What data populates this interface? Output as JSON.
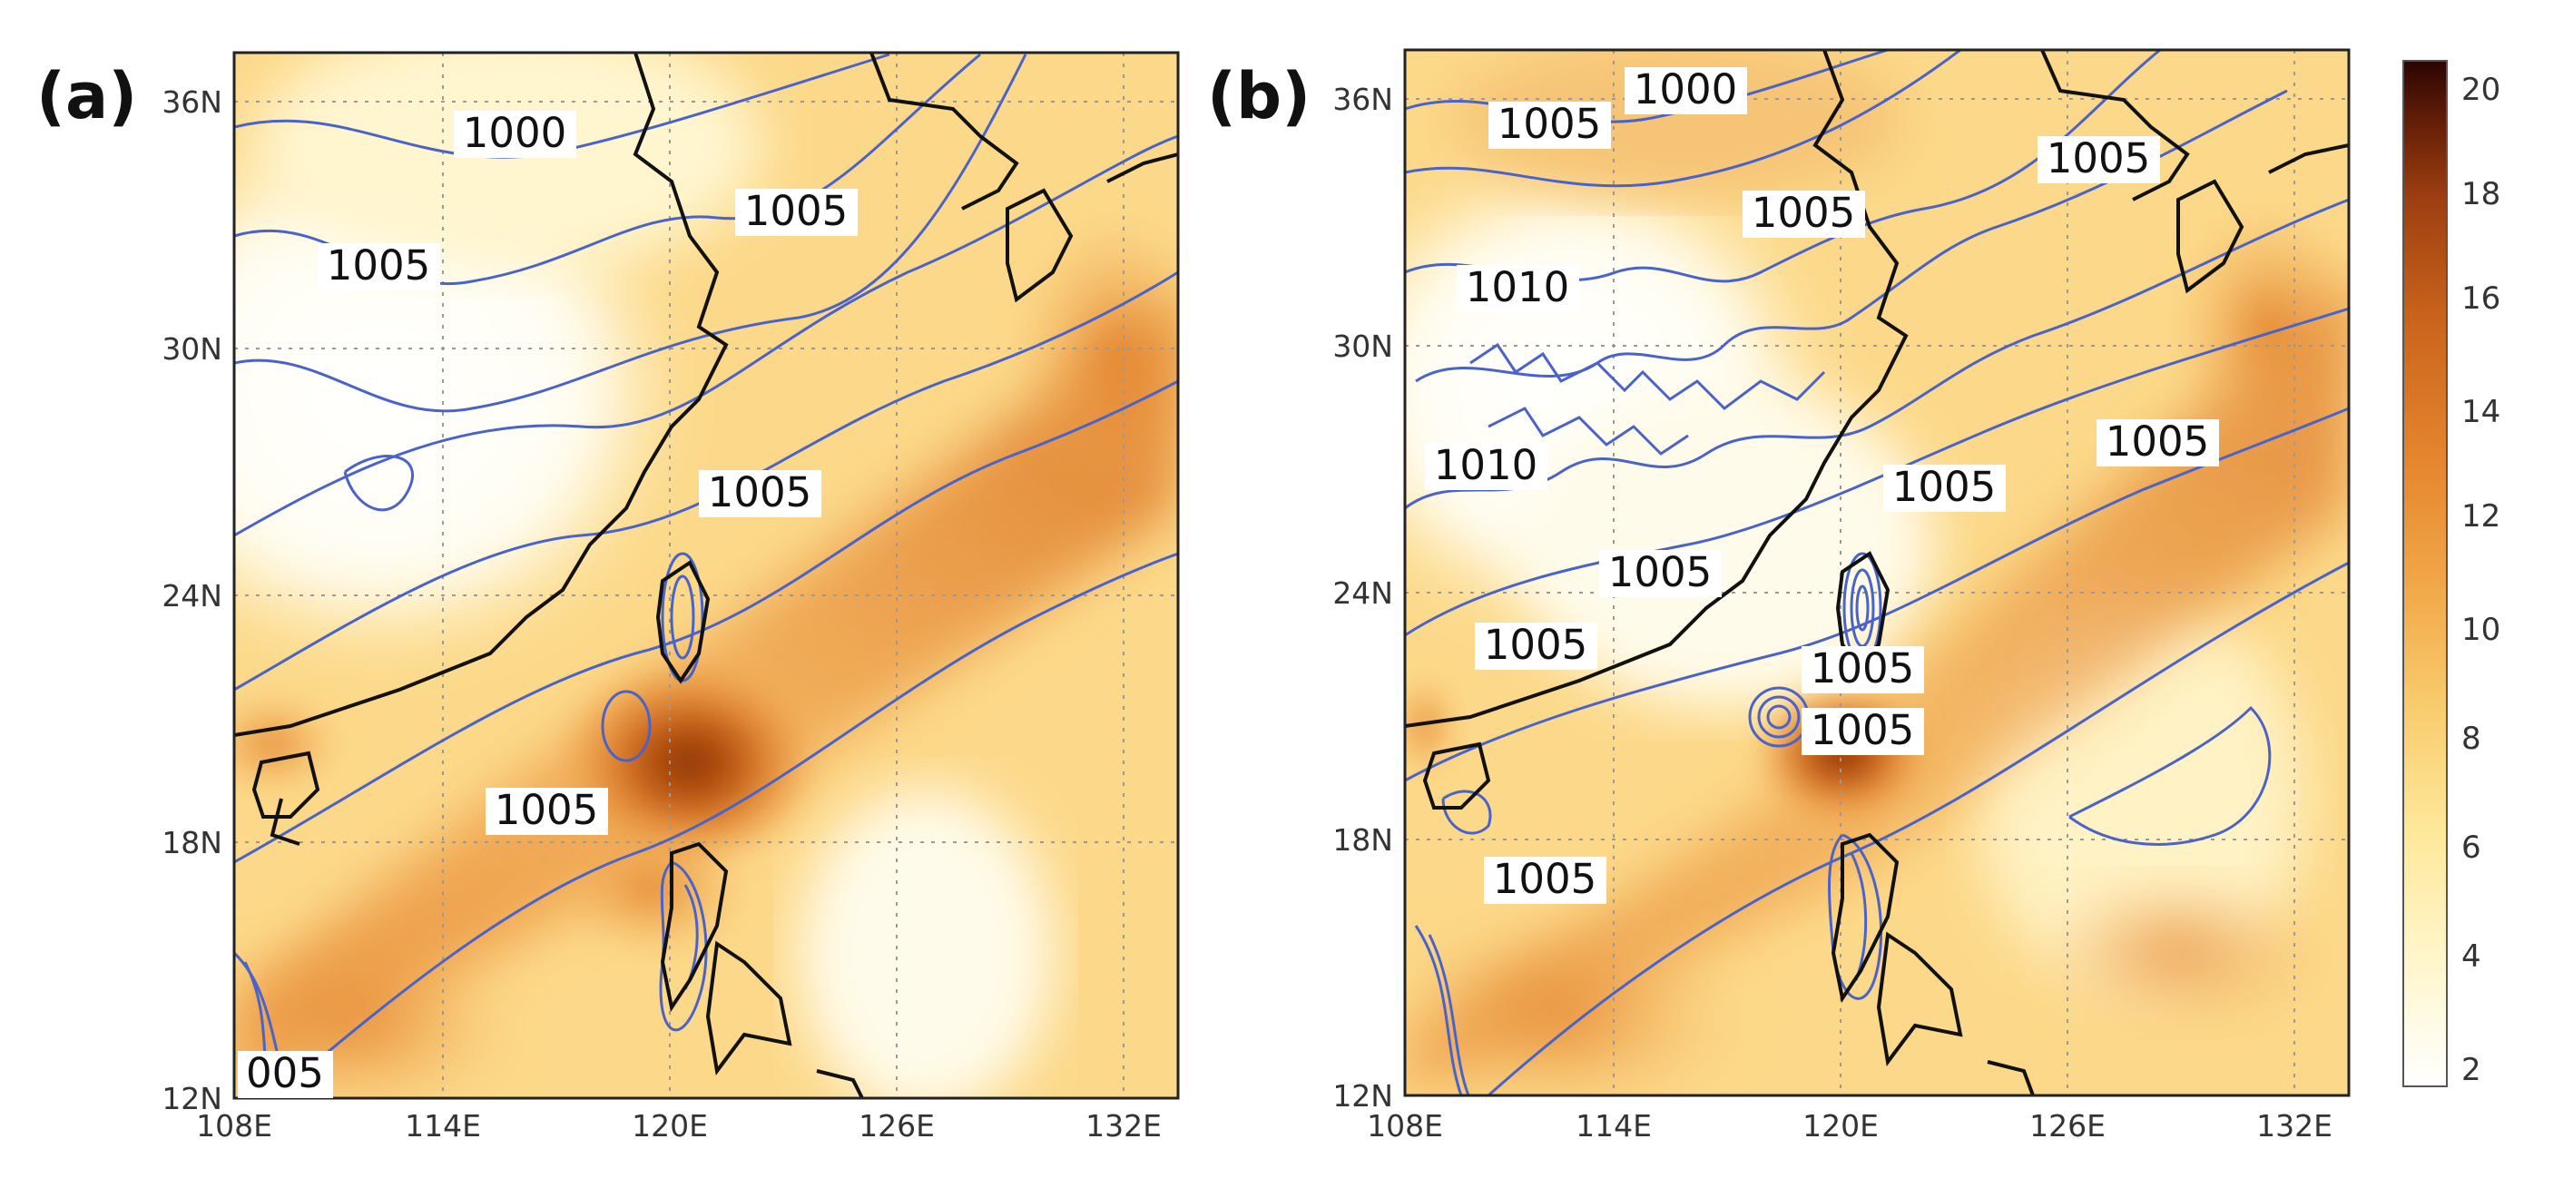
{
  "panels": [
    {
      "id": "a",
      "label": "(a)",
      "x_ticks": [
        "108E",
        "114E",
        "120E",
        "126E",
        "132E"
      ],
      "y_ticks": [
        "12N",
        "18N",
        "24N",
        "30N",
        "36N"
      ],
      "contour_labels": [
        "1000",
        "1005",
        "1005",
        "1005",
        "1005",
        "005"
      ]
    },
    {
      "id": "b",
      "label": "(b)",
      "x_ticks": [
        "108E",
        "114E",
        "120E",
        "126E",
        "132E"
      ],
      "y_ticks": [
        "12N",
        "18N",
        "24N",
        "30N",
        "36N"
      ],
      "contour_labels": [
        "1000",
        "1005",
        "1005",
        "1005",
        "1010",
        "1010",
        "1005",
        "1005",
        "1005",
        "1005",
        "1005",
        "1005",
        "1005"
      ]
    }
  ],
  "colorbar": {
    "ticks": [
      "20",
      "18",
      "16",
      "14",
      "12",
      "10",
      "8",
      "6",
      "4",
      "2"
    ],
    "min": 2,
    "max": 20,
    "colors": [
      "#ffffff",
      "#fff6cc",
      "#fde89a",
      "#f8c96a",
      "#f0a445",
      "#e4832c",
      "#c9631c",
      "#9b3d10",
      "#5c1a06",
      "#2a0502"
    ]
  }
}
